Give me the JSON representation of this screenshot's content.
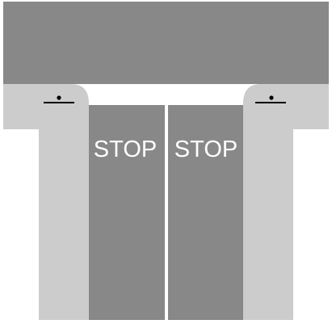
{
  "colors": {
    "background": "#ffffff",
    "road": "#888888",
    "sidewalk": "#cccccc",
    "marking": "#ffffff",
    "signal": "#000000"
  },
  "lanes": [
    {
      "marking": "STOP"
    },
    {
      "marking": "STOP"
    }
  ],
  "signals": [
    {
      "icon": "signal-pole-icon"
    },
    {
      "icon": "signal-pole-icon"
    }
  ]
}
